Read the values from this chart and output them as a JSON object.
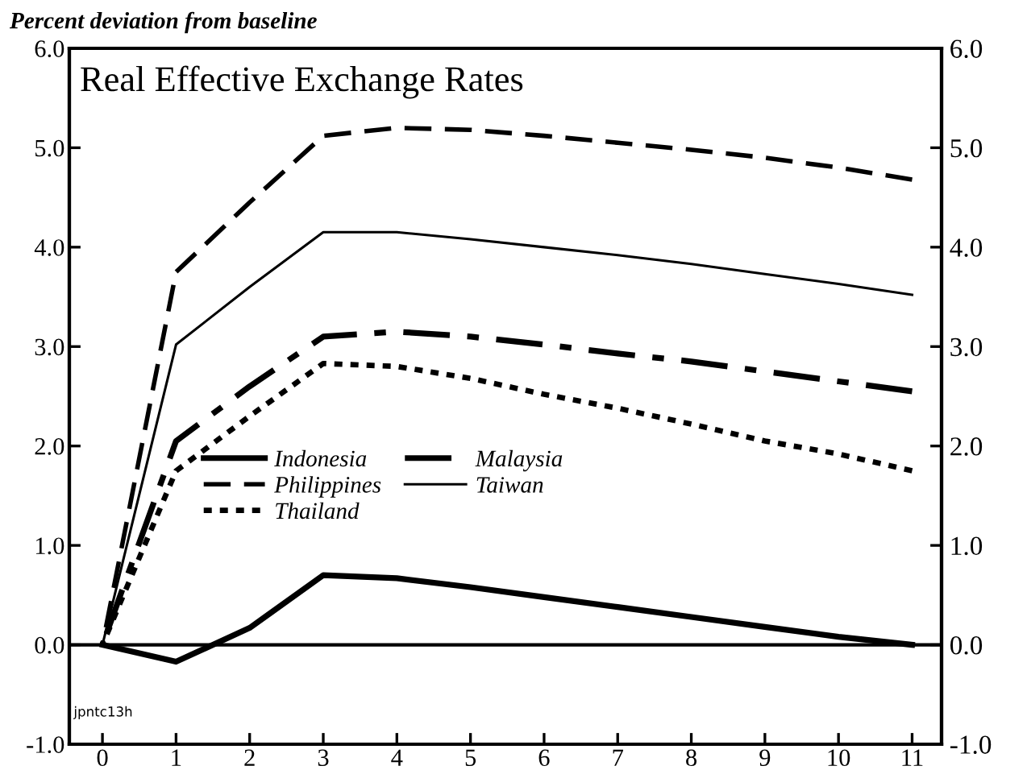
{
  "chart_data": {
    "type": "line",
    "title": "Real Effective Exchange Rates",
    "ylabel": "Percent deviation from baseline",
    "x": [
      0,
      1,
      2,
      3,
      4,
      5,
      6,
      7,
      8,
      9,
      10,
      11
    ],
    "series": [
      {
        "name": "Indonesia",
        "color": "#000000",
        "line_style": "solid",
        "values": [
          0,
          -0.17,
          0.17,
          0.7,
          0.67,
          0.58,
          0.48,
          0.38,
          0.28,
          0.18,
          0.08,
          0.0
        ]
      },
      {
        "name": "Malaysia",
        "color": "#000000",
        "line_style": "dashdot",
        "values": [
          0,
          2.05,
          2.6,
          3.1,
          3.15,
          3.1,
          3.02,
          2.93,
          2.85,
          2.75,
          2.65,
          2.55
        ]
      },
      {
        "name": "Philippines",
        "color": "#000000",
        "line_style": "dashed",
        "values": [
          0,
          3.75,
          4.45,
          5.12,
          5.2,
          5.18,
          5.12,
          5.05,
          4.98,
          4.9,
          4.8,
          4.68
        ]
      },
      {
        "name": "Taiwan",
        "color": "#000000",
        "line_style": "solid",
        "values": [
          0,
          3.02,
          3.6,
          4.15,
          4.15,
          4.08,
          4.0,
          3.92,
          3.83,
          3.73,
          3.63,
          3.52
        ]
      },
      {
        "name": "Thailand",
        "color": "#000000",
        "line_style": "dotted",
        "values": [
          0,
          1.75,
          2.3,
          2.83,
          2.8,
          2.68,
          2.52,
          2.38,
          2.22,
          2.05,
          1.92,
          1.75
        ]
      }
    ],
    "xlim": [
      -0.45,
      11.4
    ],
    "xticks": [
      0,
      1,
      2,
      3,
      4,
      5,
      6,
      7,
      8,
      9,
      10,
      11
    ],
    "ylim": [
      -1.0,
      6.0
    ],
    "yticks": [
      {
        "value": -1,
        "label": "-1.0"
      },
      {
        "value": 0,
        "label": "0.0"
      },
      {
        "value": 1,
        "label": "1.0"
      },
      {
        "value": 2,
        "label": "2.0"
      },
      {
        "value": 3,
        "label": "3.0"
      },
      {
        "value": 4,
        "label": "4.0"
      },
      {
        "value": 5,
        "label": "5.0"
      },
      {
        "value": 6,
        "label": "6.0"
      }
    ],
    "y2lim": [
      -1.0,
      6.0
    ],
    "y2ticks": [
      {
        "value": -1,
        "label": "-1.0"
      },
      {
        "value": 0,
        "label": "0.0"
      },
      {
        "value": 1,
        "label": "1.0"
      },
      {
        "value": 2,
        "label": "2.0"
      },
      {
        "value": 3,
        "label": "3.0"
      },
      {
        "value": 4,
        "label": "4.0"
      },
      {
        "value": 5,
        "label": "5.0"
      },
      {
        "value": 6,
        "label": "6.0"
      }
    ],
    "ref_lines": [
      {
        "axis": "y",
        "value": 0,
        "color": "#000000"
      }
    ],
    "annotations": [
      "jpntc13h"
    ],
    "legend": "center",
    "grid": false,
    "marker": "none"
  }
}
